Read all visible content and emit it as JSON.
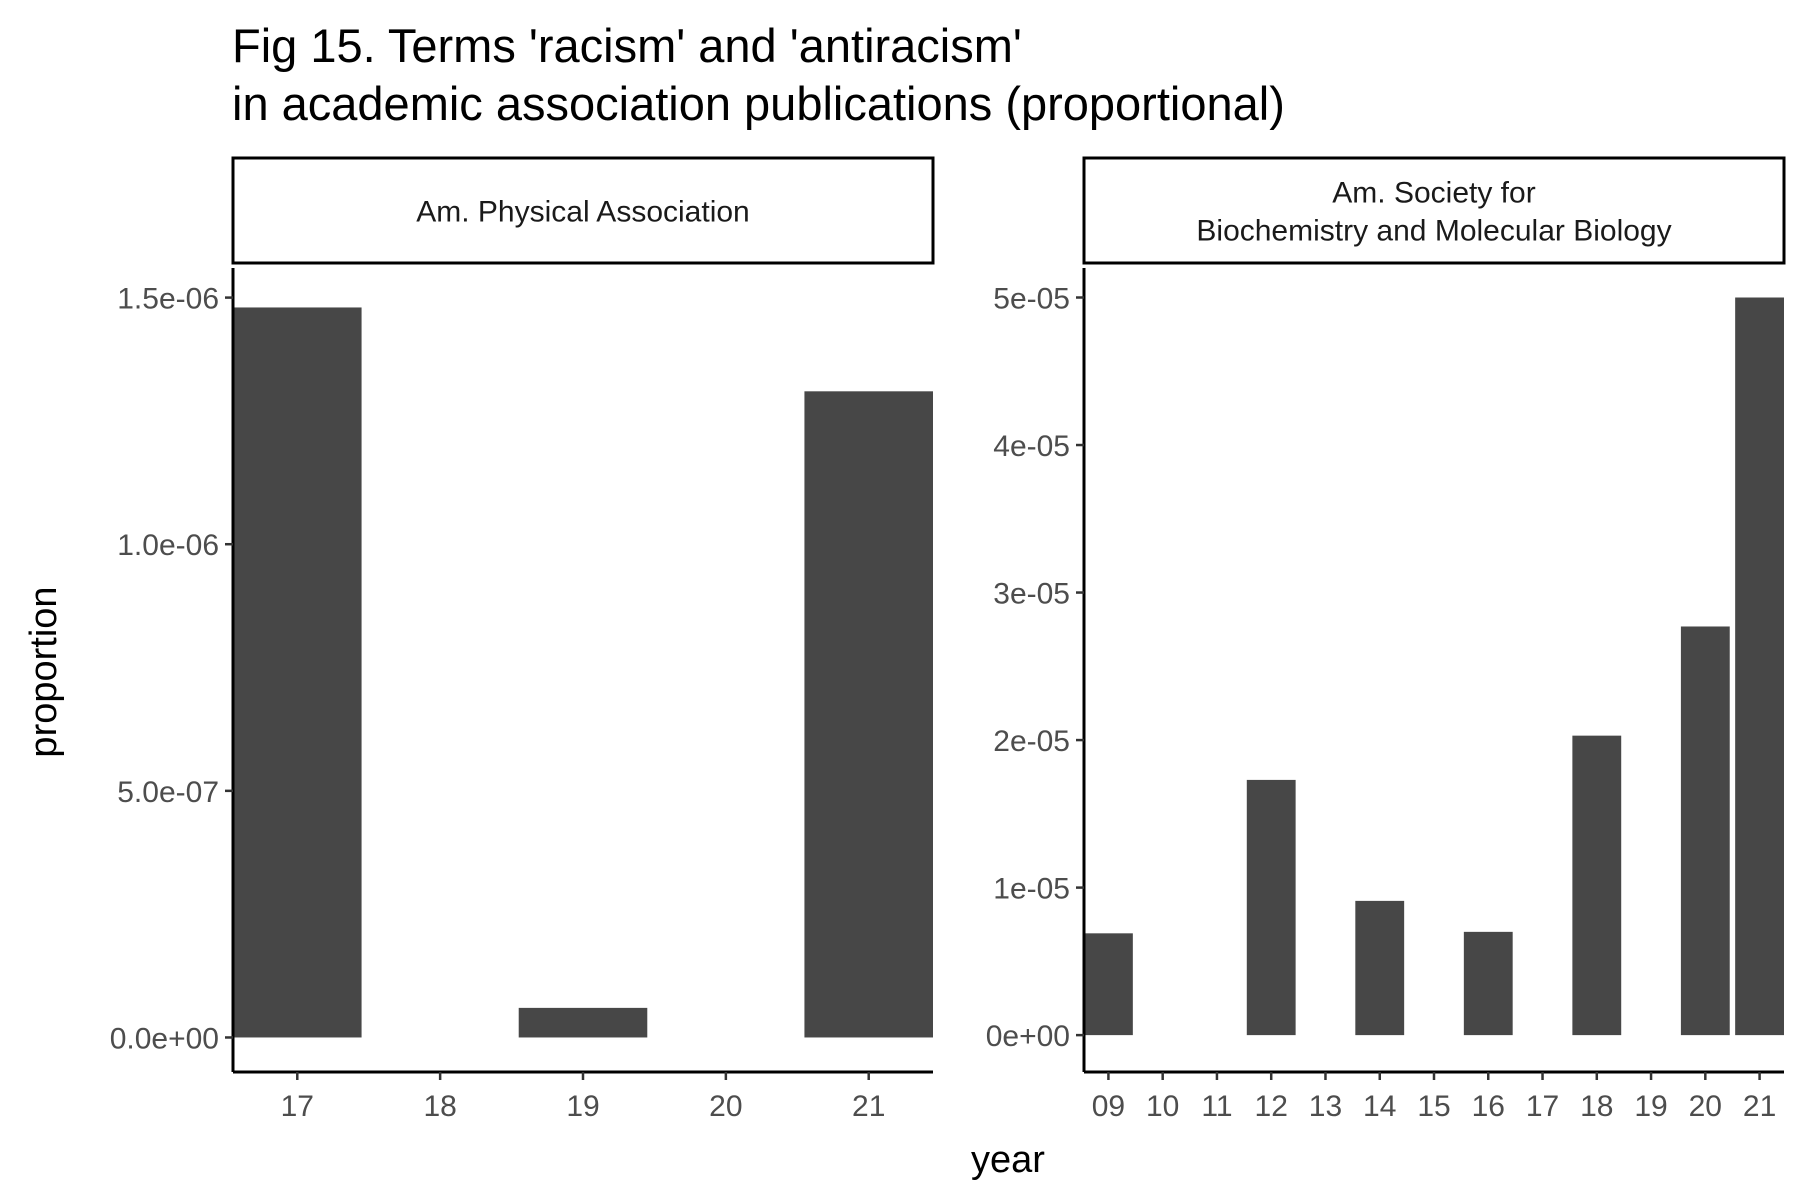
{
  "chart_data": {
    "type": "bar",
    "title": "Fig 15. Terms 'racism' and 'antiracism'",
    "subtitle": "in academic association publications (proportional)",
    "xlabel": "year",
    "ylabel": "proportion",
    "bar_color": "#474747",
    "grid": false,
    "panels": [
      {
        "strip_lines": [
          "Am. Physical Association"
        ],
        "categories": [
          "17",
          "18",
          "19",
          "20",
          "21"
        ],
        "values": [
          1.48e-06,
          0,
          6e-08,
          0,
          1.31e-06
        ],
        "ylim": [
          -7e-08,
          1.56e-06
        ],
        "yticks": [
          0,
          5e-07,
          1e-06,
          1.5e-06
        ],
        "ytick_labels": [
          "0.0e+00",
          "5.0e-07",
          "1.0e-06",
          "1.5e-06"
        ]
      },
      {
        "strip_lines": [
          "Am. Society for",
          "Biochemistry and Molecular Biology"
        ],
        "categories": [
          "09",
          "10",
          "11",
          "12",
          "13",
          "14",
          "15",
          "16",
          "17",
          "18",
          "19",
          "20",
          "21"
        ],
        "values": [
          6.9e-06,
          0,
          0,
          1.73e-05,
          0,
          9.1e-06,
          0,
          7e-06,
          0,
          2.03e-05,
          0,
          2.77e-05,
          5e-05
        ],
        "ylim": [
          -2.5e-06,
          5.2e-05
        ],
        "yticks": [
          0,
          1e-05,
          2e-05,
          3e-05,
          4e-05,
          5e-05
        ],
        "ytick_labels": [
          "0e+00",
          "1e-05",
          "2e-05",
          "3e-05",
          "4e-05",
          "5e-05"
        ]
      }
    ]
  }
}
